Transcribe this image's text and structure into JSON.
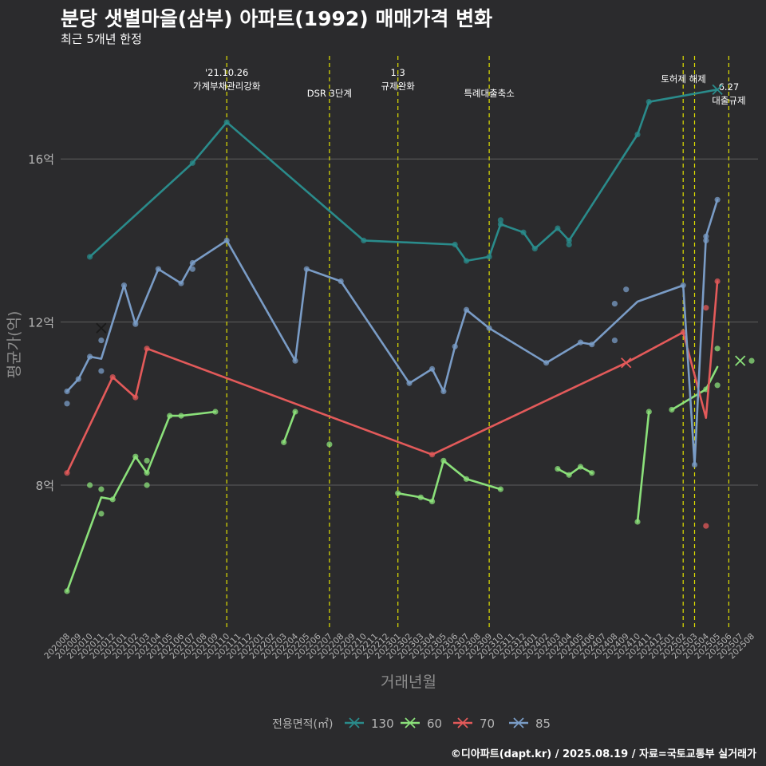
{
  "title": "분당 샛별마을(삼부) 아파트(1992) 매매가격 변화",
  "subtitle": "최근 5개년 한정",
  "caption": "©디아파트(dapt.kr) / 2025.08.19 / 자료=국토교통부 실거래가",
  "colors": {
    "background": "#2b2b2d",
    "grid": "#5e5e5e",
    "text": "#ffffff",
    "axis_text": "#b4b4b4",
    "event_line": "#e0e000"
  },
  "chart_data": {
    "type": "line",
    "title": "분당 샛별마을(삼부) 아파트(1992) 매매가격 변화",
    "subtitle": "최근 5개년 한정",
    "xlabel": "거래년월",
    "ylabel": "평균가(억)",
    "x": [
      "202008",
      "202009",
      "202010",
      "202011",
      "202012",
      "202101",
      "202102",
      "202103",
      "202104",
      "202105",
      "202106",
      "202107",
      "202108",
      "202109",
      "202110",
      "202111",
      "202112",
      "202201",
      "202202",
      "202203",
      "202204",
      "202205",
      "202206",
      "202207",
      "202208",
      "202209",
      "202210",
      "202211",
      "202212",
      "202301",
      "202302",
      "202303",
      "202304",
      "202305",
      "202306",
      "202307",
      "202308",
      "202309",
      "202310",
      "202311",
      "202312",
      "202401",
      "202402",
      "202403",
      "202404",
      "202405",
      "202406",
      "202407",
      "202408",
      "202409",
      "202410",
      "202411",
      "202412",
      "202501",
      "202502",
      "202503",
      "202504",
      "202505",
      "202506",
      "202507",
      "202508"
    ],
    "yticks": [
      {
        "value": 8,
        "label": "8억"
      },
      {
        "value": 12,
        "label": "12억"
      },
      {
        "value": 16,
        "label": "16억"
      }
    ],
    "ylim": [
      4.5,
      18.6
    ],
    "grid": true,
    "legend": {
      "title": "전용면적(㎡)",
      "position": "bottom"
    },
    "series": [
      {
        "name": "130",
        "color": "#2a8b8b",
        "line": [
          [
            "202010",
            13.6
          ],
          [
            "202107",
            15.9
          ],
          [
            "202110",
            16.9
          ],
          [
            "202210",
            14.0
          ],
          [
            "202306",
            13.9
          ],
          [
            "202307",
            13.5
          ],
          [
            "202309",
            13.6
          ],
          [
            "202310",
            14.4
          ],
          [
            "202312",
            14.2
          ],
          [
            "202401",
            13.8
          ],
          [
            "202403",
            14.3
          ],
          [
            "202404",
            14.0
          ],
          [
            "202410",
            16.6
          ],
          [
            "202411",
            17.4
          ],
          [
            "202505",
            17.7
          ]
        ],
        "points": [
          [
            "202010",
            13.6
          ],
          [
            "202107",
            15.9
          ],
          [
            "202110",
            16.9
          ],
          [
            "202210",
            14.0
          ],
          [
            "202306",
            13.9
          ],
          [
            "202307",
            13.5
          ],
          [
            "202309",
            13.6
          ],
          [
            "202310",
            14.4
          ],
          [
            "202310",
            14.5
          ],
          [
            "202312",
            14.2
          ],
          [
            "202401",
            13.8
          ],
          [
            "202403",
            14.3
          ],
          [
            "202404",
            14.0
          ],
          [
            "202404",
            13.9
          ],
          [
            "202410",
            16.6
          ],
          [
            "202411",
            17.4
          ]
        ],
        "last": [
          "202505",
          17.7
        ]
      },
      {
        "name": "60",
        "color": "#8be07a",
        "line_segments": [
          [
            [
              "202008",
              5.4
            ],
            [
              "202011",
              7.7
            ],
            [
              "202012",
              7.65
            ],
            [
              "202102",
              8.7
            ],
            [
              "202103",
              8.3
            ],
            [
              "202105",
              9.7
            ],
            [
              "202106",
              9.7
            ],
            [
              "202109",
              9.8
            ]
          ],
          [
            [
              "202203",
              9.05
            ],
            [
              "202204",
              9.8
            ]
          ],
          [
            [
              "202301",
              7.8
            ],
            [
              "202303",
              7.7
            ],
            [
              "202304",
              7.6
            ],
            [
              "202305",
              8.6
            ],
            [
              "202307",
              8.15
            ],
            [
              "202310",
              7.9
            ]
          ],
          [
            [
              "202403",
              8.4
            ],
            [
              "202404",
              8.25
            ],
            [
              "202405",
              8.45
            ],
            [
              "202406",
              8.3
            ]
          ],
          [
            [
              "202410",
              7.1
            ],
            [
              "202411",
              9.8
            ]
          ],
          [
            [
              "202501",
              9.85
            ],
            [
              "202504",
              10.35
            ],
            [
              "202505",
              10.9
            ]
          ]
        ],
        "points": [
          [
            "202008",
            5.4
          ],
          [
            "202010",
            8.0
          ],
          [
            "202011",
            7.3
          ],
          [
            "202011",
            7.9
          ],
          [
            "202012",
            7.65
          ],
          [
            "202102",
            8.7
          ],
          [
            "202103",
            8.0
          ],
          [
            "202103",
            8.6
          ],
          [
            "202103",
            8.3
          ],
          [
            "202105",
            9.7
          ],
          [
            "202106",
            9.7
          ],
          [
            "202109",
            9.8
          ],
          [
            "202203",
            9.05
          ],
          [
            "202204",
            9.8
          ],
          [
            "202207",
            9.0
          ],
          [
            "202301",
            7.8
          ],
          [
            "202303",
            7.7
          ],
          [
            "202304",
            7.6
          ],
          [
            "202305",
            8.6
          ],
          [
            "202307",
            8.15
          ],
          [
            "202310",
            7.9
          ],
          [
            "202403",
            8.4
          ],
          [
            "202404",
            8.25
          ],
          [
            "202405",
            8.45
          ],
          [
            "202406",
            8.3
          ],
          [
            "202410",
            7.1
          ],
          [
            "202411",
            9.8
          ],
          [
            "202501",
            9.85
          ],
          [
            "202504",
            10.35
          ],
          [
            "202505",
            11.35
          ],
          [
            "202505",
            10.45
          ],
          [
            "202508",
            11.05
          ]
        ],
        "last": [
          "202507",
          11.05
        ]
      },
      {
        "name": "70",
        "color": "#e35a5a",
        "line": [
          [
            "202008",
            8.3
          ],
          [
            "202012",
            10.65
          ],
          [
            "202102",
            10.15
          ],
          [
            "202103",
            11.35
          ],
          [
            "202304",
            8.75
          ],
          [
            "202409",
            11.0
          ],
          [
            "202502",
            11.75
          ],
          [
            "202504",
            9.65
          ],
          [
            "202505",
            13.0
          ]
        ],
        "points": [
          [
            "202008",
            8.3
          ],
          [
            "202012",
            10.65
          ],
          [
            "202102",
            10.15
          ],
          [
            "202103",
            11.35
          ],
          [
            "202304",
            8.75
          ],
          [
            "202502",
            11.75
          ],
          [
            "202504",
            12.35
          ],
          [
            "202504",
            7.0
          ],
          [
            "202505",
            13.0
          ]
        ],
        "last": [
          "202409",
          11.0
        ]
      },
      {
        "name": "85",
        "color": "#7a9cc6",
        "line": [
          [
            "202008",
            10.3
          ],
          [
            "202009",
            10.6
          ],
          [
            "202010",
            11.15
          ],
          [
            "202011",
            11.1
          ],
          [
            "202101",
            12.9
          ],
          [
            "202102",
            11.95
          ],
          [
            "202104",
            13.3
          ],
          [
            "202106",
            12.95
          ],
          [
            "202107",
            13.45
          ],
          [
            "202110",
            14.0
          ],
          [
            "202204",
            11.05
          ],
          [
            "202205",
            13.3
          ],
          [
            "202208",
            13.0
          ],
          [
            "202302",
            10.5
          ],
          [
            "202304",
            10.85
          ],
          [
            "202305",
            10.3
          ],
          [
            "202306",
            11.4
          ],
          [
            "202307",
            12.3
          ],
          [
            "202309",
            11.85
          ],
          [
            "202402",
            11.0
          ],
          [
            "202405",
            11.5
          ],
          [
            "202406",
            11.45
          ],
          [
            "202410",
            12.5
          ],
          [
            "202502",
            12.9
          ],
          [
            "202503",
            8.5
          ],
          [
            "202504",
            14.1
          ],
          [
            "202505",
            15.0
          ]
        ],
        "points": [
          [
            "202008",
            10.3
          ],
          [
            "202008",
            10.0
          ],
          [
            "202009",
            10.6
          ],
          [
            "202010",
            11.15
          ],
          [
            "202011",
            10.8
          ],
          [
            "202011",
            11.55
          ],
          [
            "202101",
            12.9
          ],
          [
            "202102",
            11.95
          ],
          [
            "202104",
            13.3
          ],
          [
            "202106",
            12.95
          ],
          [
            "202107",
            13.45
          ],
          [
            "202107",
            13.3
          ],
          [
            "202110",
            14.0
          ],
          [
            "202204",
            11.05
          ],
          [
            "202205",
            13.3
          ],
          [
            "202208",
            13.0
          ],
          [
            "202302",
            10.5
          ],
          [
            "202304",
            10.85
          ],
          [
            "202305",
            10.3
          ],
          [
            "202306",
            11.4
          ],
          [
            "202307",
            12.3
          ],
          [
            "202309",
            11.85
          ],
          [
            "202402",
            11.0
          ],
          [
            "202405",
            11.5
          ],
          [
            "202406",
            11.45
          ],
          [
            "202408",
            12.45
          ],
          [
            "202408",
            11.55
          ],
          [
            "202409",
            12.8
          ],
          [
            "202502",
            12.9
          ],
          [
            "202503",
            8.5
          ],
          [
            "202504",
            14.1
          ],
          [
            "202504",
            14.0
          ],
          [
            "202505",
            15.0
          ]
        ],
        "last": [
          "202011",
          11.85
        ]
      }
    ],
    "events": [
      {
        "month": "202110",
        "label": [
          "'21.10.26",
          "가계부채관리강화"
        ]
      },
      {
        "month": "202207",
        "label": [
          "DSR 3단계"
        ]
      },
      {
        "month": "202301",
        "label": [
          "1.3",
          "규제완화"
        ]
      },
      {
        "month": "202309",
        "label": [
          "특례대출축소"
        ]
      },
      {
        "month": "202502",
        "label": [
          ""
        ]
      },
      {
        "month": "202503",
        "label": [
          "토허제 해제"
        ]
      },
      {
        "month": "202506",
        "label": [
          "6.27",
          "대출규제"
        ]
      }
    ]
  }
}
